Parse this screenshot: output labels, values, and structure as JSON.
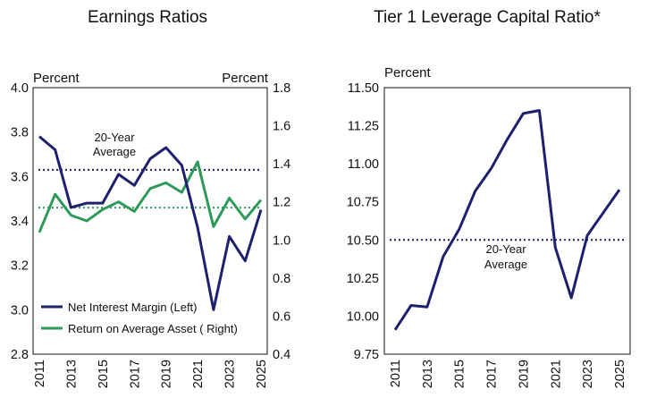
{
  "chart_data": [
    {
      "type": "line",
      "title": "Earnings Ratios",
      "left_unit": "Percent",
      "right_unit": "Percent",
      "x": [
        "2011",
        "2012",
        "2013",
        "2014",
        "2015",
        "2016",
        "2017",
        "2018",
        "2019",
        "2020",
        "2021",
        "2022",
        "2023",
        "2024",
        "2025"
      ],
      "x_tick_labels": [
        "2011",
        "2013",
        "2015",
        "2017",
        "2019",
        "2021",
        "2023",
        "2025"
      ],
      "y_left": {
        "range": [
          2.8,
          4.0
        ],
        "ticks": [
          "4.0",
          "3.8",
          "3.6",
          "3.4",
          "3.2",
          "3.0",
          "2.8"
        ]
      },
      "y_right": {
        "range": [
          0.4,
          1.8
        ],
        "ticks": [
          "1.8",
          "1.6",
          "1.4",
          "1.2",
          "1.0",
          "0.8",
          "0.6",
          "0.4"
        ]
      },
      "series": [
        {
          "name": "Net Interest Margin (Left)",
          "axis": "left",
          "color": "#1f1f6e",
          "values": [
            3.78,
            3.72,
            3.46,
            3.48,
            3.48,
            3.61,
            3.56,
            3.68,
            3.73,
            3.65,
            3.37,
            3.0,
            3.33,
            3.22,
            3.45
          ]
        },
        {
          "name": "Return on Average Asset ( Right)",
          "axis": "right",
          "color": "#2e9a5a",
          "values": [
            1.04,
            1.24,
            1.13,
            1.1,
            1.16,
            1.2,
            1.15,
            1.27,
            1.3,
            1.25,
            1.41,
            1.07,
            1.22,
            1.11,
            1.21
          ]
        }
      ],
      "reference_lines": [
        {
          "axis": "left",
          "value": 3.63,
          "color": "#1f1f6e",
          "label": "20-Year Average"
        },
        {
          "axis": "right",
          "value": 1.17,
          "color": "#2e9a5a"
        }
      ],
      "annotation": [
        "20-Year",
        "Average"
      ],
      "legend": [
        "Net Interest Margin (Left)",
        "Return on Average Asset ( Right)"
      ]
    },
    {
      "type": "line",
      "title": "Tier 1 Leverage Capital Ratio*",
      "unit": "Percent",
      "x": [
        "2011",
        "2012",
        "2013",
        "2014",
        "2015",
        "2016",
        "2017",
        "2018",
        "2019",
        "2020",
        "2021",
        "2022",
        "2023",
        "2024",
        "2025"
      ],
      "x_tick_labels": [
        "2011",
        "2013",
        "2015",
        "2017",
        "2019",
        "2021",
        "2023",
        "2025"
      ],
      "y": {
        "range": [
          9.75,
          11.5
        ],
        "ticks": [
          "11.50",
          "11.25",
          "11.00",
          "10.75",
          "10.50",
          "10.25",
          "10.00",
          "9.75"
        ]
      },
      "series": [
        {
          "name": "Tier 1 Leverage Capital Ratio",
          "color": "#1f1f6e",
          "values": [
            9.91,
            10.07,
            10.06,
            10.39,
            10.57,
            10.82,
            10.97,
            11.16,
            11.33,
            11.35,
            10.45,
            10.12,
            10.53,
            10.68,
            10.83
          ]
        }
      ],
      "reference_lines": [
        {
          "value": 10.5,
          "color": "#1f1f6e",
          "label": "20-Year Average"
        }
      ],
      "annotation": [
        "20-Year",
        "Average"
      ]
    }
  ]
}
